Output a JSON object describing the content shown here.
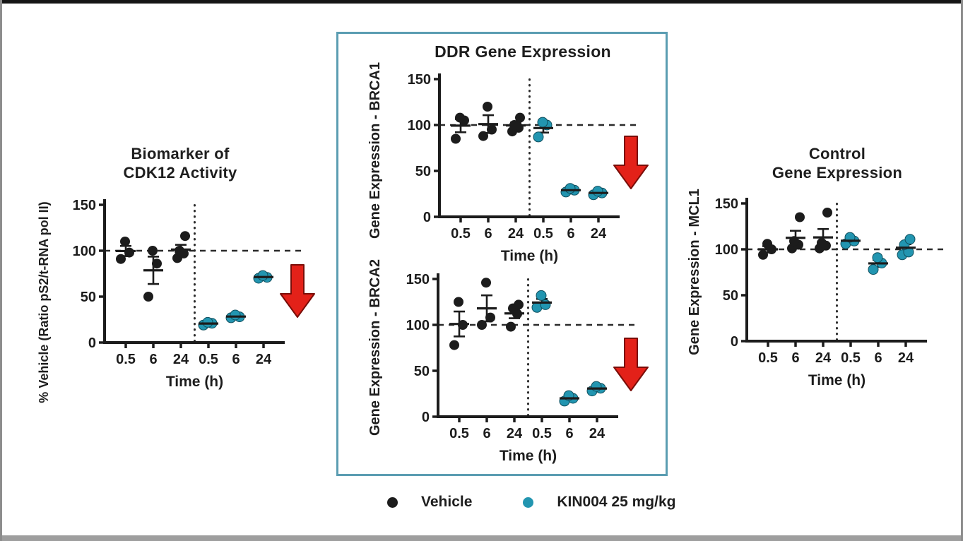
{
  "figure": {
    "frame": {
      "top_bar_color": "#161616",
      "side_border_color": "#8d8d8d",
      "bottom_bar_color": "#9e9e9e"
    },
    "ddr_box": {
      "title": "DDR Gene Expression",
      "border_color": "#5b9db2"
    },
    "legend": {
      "items": [
        {
          "label": "Vehicle",
          "color": "#1c1c1c"
        },
        {
          "label": "KIN004 25 mg/kg",
          "color": "#2295b0"
        }
      ]
    },
    "colors": {
      "vehicle": "#1c1c1c",
      "kin004": "#2295b0",
      "kin004_edge": "#10505f",
      "arrow_fill": "#e32119",
      "arrow_outline": "#7a0d08",
      "ref_line": "#2b2b2b"
    }
  },
  "chart_data": [
    {
      "id": "cdk12",
      "type": "scatter",
      "title_lines": [
        "Biomarker of",
        "CDK12 Activity"
      ],
      "ylabel": "% Vehicle (Ratio pS2/t-RNA pol II)",
      "xlabel": "Time (h)",
      "ylim": [
        0,
        150
      ],
      "yticks": [
        0,
        50,
        100,
        150
      ],
      "categories": [
        "0.5",
        "6",
        "24",
        "0.5",
        "6",
        "24"
      ],
      "separator_after": 3,
      "hline": 100,
      "annotation": "red-down-arrow",
      "series": [
        {
          "name": "Vehicle",
          "color": "#1c1c1c",
          "points": [
            [
              91,
              98,
              110
            ],
            [
              50,
              86,
              100
            ],
            [
              92,
              97,
              100,
              116
            ],
            [],
            [],
            []
          ]
        },
        {
          "name": "KIN004 25 mg/kg",
          "color": "#2295b0",
          "points": [
            [],
            [],
            [],
            [
              19,
              21,
              22
            ],
            [
              27,
              28,
              30
            ],
            [
              70,
              71,
              73
            ]
          ]
        }
      ]
    },
    {
      "id": "brca1",
      "type": "scatter",
      "title_lines": [],
      "ylabel": "Gene Expression - BRCA1",
      "xlabel": "Time (h)",
      "ylim": [
        0,
        150
      ],
      "yticks": [
        0,
        50,
        100,
        150
      ],
      "categories": [
        "0.5",
        "6",
        "24",
        "0.5",
        "6",
        "24"
      ],
      "separator_after": 3,
      "hline": 100,
      "annotation": "red-down-arrow",
      "series": [
        {
          "name": "Vehicle",
          "color": "#1c1c1c",
          "points": [
            [
              85,
              105,
              108
            ],
            [
              88,
              95,
              120
            ],
            [
              93,
              97,
              100,
              108
            ],
            [],
            [],
            []
          ]
        },
        {
          "name": "KIN004 25 mg/kg",
          "color": "#2295b0",
          "points": [
            [],
            [],
            [],
            [
              87,
              100,
              103
            ],
            [
              27,
              29,
              31
            ],
            [
              24,
              26,
              28
            ]
          ]
        }
      ]
    },
    {
      "id": "brca2",
      "type": "scatter",
      "title_lines": [],
      "ylabel": "Gene Expression - BRCA2",
      "xlabel": "Time (h)",
      "ylim": [
        0,
        150
      ],
      "yticks": [
        0,
        50,
        100,
        150
      ],
      "categories": [
        "0.5",
        "6",
        "24",
        "0.5",
        "6",
        "24"
      ],
      "separator_after": 3,
      "hline": 100,
      "annotation": "red-down-arrow",
      "series": [
        {
          "name": "Vehicle",
          "color": "#1c1c1c",
          "points": [
            [
              78,
              100,
              125
            ],
            [
              100,
              108,
              146
            ],
            [
              98,
              112,
              118,
              122
            ],
            [],
            [],
            []
          ]
        },
        {
          "name": "KIN004 25 mg/kg",
          "color": "#2295b0",
          "points": [
            [],
            [],
            [],
            [
              119,
              122,
              132
            ],
            [
              17,
              20,
              23
            ],
            [
              28,
              31,
              33
            ]
          ]
        }
      ]
    },
    {
      "id": "mcl1",
      "type": "scatter",
      "title_lines": [
        "Control",
        "Gene Expression"
      ],
      "ylabel": "Gene Expression - MCL1",
      "xlabel": "Time (h)",
      "ylim": [
        0,
        150
      ],
      "yticks": [
        0,
        50,
        100,
        150
      ],
      "categories": [
        "0.5",
        "6",
        "24",
        "0.5",
        "6",
        "24"
      ],
      "separator_after": 3,
      "hline": 100,
      "annotation": "none",
      "series": [
        {
          "name": "Vehicle",
          "color": "#1c1c1c",
          "points": [
            [
              94,
              100,
              106
            ],
            [
              101,
              105,
              109,
              135
            ],
            [
              101,
              104,
              107,
              140
            ],
            [],
            [],
            []
          ]
        },
        {
          "name": "KIN004 25 mg/kg",
          "color": "#2295b0",
          "points": [
            [],
            [],
            [],
            [
              106,
              109,
              113
            ],
            [
              78,
              85,
              91
            ],
            [
              94,
              97,
              105,
              111
            ]
          ]
        }
      ]
    }
  ]
}
